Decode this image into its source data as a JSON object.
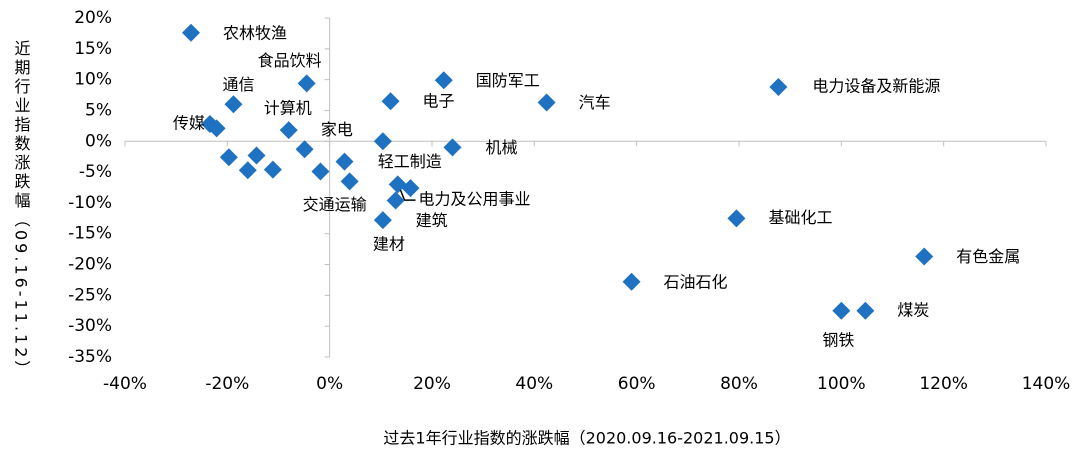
{
  "chart_data": {
    "type": "scatter",
    "x_label": "过去1年行业指数的涨跌幅（2020.09.16-2021.09.15）",
    "y_label": "近期行业指数涨跌幅（09.16-11.12）",
    "xlim": [
      -40,
      140
    ],
    "ylim": [
      -35,
      20
    ],
    "xticks": [
      {
        "value": -40,
        "label": "-40%"
      },
      {
        "value": -20,
        "label": "-20%"
      },
      {
        "value": 0,
        "label": "0%"
      },
      {
        "value": 20,
        "label": "20%"
      },
      {
        "value": 40,
        "label": "40%"
      },
      {
        "value": 60,
        "label": "60%"
      },
      {
        "value": 80,
        "label": "80%"
      },
      {
        "value": 100,
        "label": "100%"
      },
      {
        "value": 120,
        "label": "120%"
      },
      {
        "value": 140,
        "label": "140%"
      }
    ],
    "yticks": [
      {
        "value": 20,
        "label": "20%"
      },
      {
        "value": 15,
        "label": "15%"
      },
      {
        "value": 10,
        "label": "10%"
      },
      {
        "value": 5,
        "label": "5%"
      },
      {
        "value": 0,
        "label": "0%"
      },
      {
        "value": -5,
        "label": "-5%"
      },
      {
        "value": -10,
        "label": "-10%"
      },
      {
        "value": -15,
        "label": "-15%"
      },
      {
        "value": -20,
        "label": "-20%"
      },
      {
        "value": -25,
        "label": "-25%"
      },
      {
        "value": -30,
        "label": "-30%"
      },
      {
        "value": -35,
        "label": "-35%"
      }
    ],
    "color": "#1f72c2",
    "labels": [
      "农林牧渔",
      "食品饮料",
      "通信",
      "传媒",
      null,
      "计算机",
      "家电",
      "电子",
      "国防军工",
      "汽车",
      "电力设备及新能源",
      "机械",
      null,
      null,
      null,
      null,
      null,
      null,
      null,
      "交通运输",
      "轻工制造",
      "电力及公用事业",
      "建筑",
      "建材",
      "基础化工",
      "有色金属",
      "石油石化",
      "钢铁",
      "煤炭"
    ],
    "x": [
      -27.1,
      -4.5,
      -18.8,
      -23.4,
      -22.1,
      -8.0,
      10.4,
      11.9,
      22.3,
      42.4,
      87.7,
      24.0,
      -19.7,
      -14.3,
      -16.0,
      -11.1,
      -4.9,
      -1.8,
      2.9,
      3.9,
      13.3,
      15.8,
      12.9,
      10.4,
      79.5,
      116.2,
      59.0,
      100.0,
      104.7
    ],
    "values": [
      17.6,
      9.4,
      6.0,
      2.8,
      2.1,
      1.8,
      0.0,
      6.5,
      9.9,
      6.3,
      8.8,
      -1.0,
      -2.6,
      -2.3,
      -4.7,
      -4.6,
      -1.3,
      -4.9,
      -3.3,
      -6.5,
      -7.0,
      -7.6,
      -9.6,
      -12.8,
      -12.5,
      -18.7,
      -22.8,
      -27.5,
      -27.5
    ]
  }
}
